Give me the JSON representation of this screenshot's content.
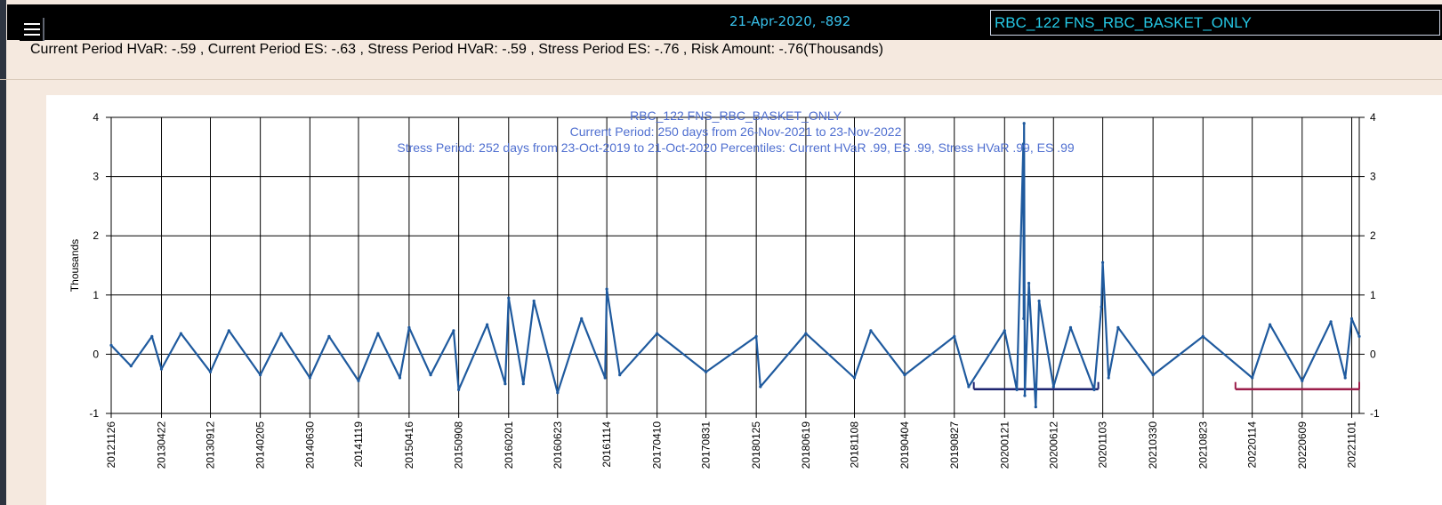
{
  "header": {
    "menu_icon": "hamburger-menu-icon",
    "selected_point": "21-Apr-2020, -892",
    "basket_value": "RBC_122 FNS_RBC_BASKET_ONLY"
  },
  "metrics_line": "Current Period HVaR: -.59  , Current Period ES: -.63  , Stress Period HVaR: -.59  , Stress Period ES: -.76  , Risk Amount: -.76(Thousands)",
  "chart_data": {
    "type": "line",
    "title": "RBC_122 FNS_RBC_BASKET_ONLY",
    "subtitle": "Current Period: 250 days from 26-Nov-2021 to 23-Nov-2022",
    "subtitle2": "Stress Period: 252 days from 23-Oct-2019 to 21-Oct-2020  Percentiles:  Current HVaR .99,    ES .99,    Stress HVaR .99,    ES .99",
    "ylabel": "Thousands",
    "xlabel": "",
    "ylim": [
      -1,
      4
    ],
    "y_ticks": [
      -1,
      0,
      1,
      2,
      3,
      4
    ],
    "x_ticks": [
      "20121126",
      "20130422",
      "20130912",
      "20140205",
      "20140630",
      "20141119",
      "20150416",
      "20150908",
      "20160201",
      "20160623",
      "20161114",
      "20170410",
      "20170831",
      "20180125",
      "20180619",
      "20181108",
      "20190404",
      "20190827",
      "20200121",
      "20200612",
      "20201103",
      "20210330",
      "20210823",
      "20220114",
      "20220609",
      "20221101"
    ],
    "grid": true,
    "series_color": "#1f5a9e",
    "stress_period": {
      "start": "20191023",
      "end": "20201021",
      "level": -0.59,
      "color": "#1e2470"
    },
    "current_period": {
      "start": "20211126",
      "end": "20221123",
      "level": -0.59,
      "color": "#9b1e4a"
    },
    "series": [
      {
        "x": [
          "20121126",
          "20130123",
          "20130325",
          "20130422",
          "20130618",
          "20130912",
          "20131105",
          "20140205",
          "20140407",
          "20140630",
          "20140825",
          "20141119",
          "20150115",
          "20150320",
          "20150416",
          "20150618",
          "20150824",
          "20150908",
          "20151130",
          "20160122",
          "20160201",
          "20160315",
          "20160415",
          "20160623",
          "20160901",
          "20161109",
          "20161114",
          "20161222",
          "20170410",
          "20170831",
          "20180125",
          "20180206",
          "20180619",
          "20181108",
          "20181226",
          "20190404",
          "20190827",
          "20191008",
          "20200121",
          "20200226",
          "20200316",
          "20200317",
          "20200318",
          "20200320",
          "20200401",
          "20200421",
          "20200501",
          "20200612",
          "20200801",
          "20201009",
          "20201030",
          "20201103",
          "20201120",
          "20201218",
          "20210330",
          "20210823",
          "20220114",
          "20220307",
          "20220609",
          "20220901",
          "20221013",
          "20221101",
          "20221123"
        ],
        "values": [
          0.15,
          -0.2,
          0.3,
          -0.25,
          0.35,
          -0.3,
          0.4,
          -0.35,
          0.35,
          -0.4,
          0.3,
          -0.45,
          0.35,
          -0.4,
          0.45,
          -0.35,
          0.4,
          -0.6,
          0.5,
          -0.5,
          0.95,
          -0.5,
          0.9,
          -0.65,
          0.6,
          -0.4,
          1.1,
          -0.35,
          0.35,
          -0.3,
          0.3,
          -0.55,
          0.35,
          -0.4,
          0.4,
          -0.35,
          0.3,
          -0.55,
          0.4,
          -0.6,
          3.55,
          0.6,
          3.9,
          -0.7,
          1.2,
          -0.89,
          0.9,
          -0.55,
          0.45,
          -0.6,
          0.8,
          1.55,
          -0.4,
          0.45,
          -0.35,
          0.3,
          -0.4,
          0.5,
          -0.45,
          0.55,
          -0.4,
          0.6,
          0.3
        ]
      }
    ]
  }
}
